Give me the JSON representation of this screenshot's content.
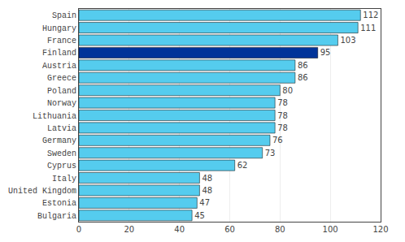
{
  "chart_data": {
    "type": "bar",
    "orientation": "horizontal",
    "categories": [
      "Spain",
      "Hungary",
      "France",
      "Finland",
      "Austria",
      "Greece",
      "Poland",
      "Norway",
      "Lithuania",
      "Latvia",
      "Germany",
      "Sweden",
      "Cyprus",
      "Italy",
      "United Kingdom",
      "Estonia",
      "Bulgaria"
    ],
    "values": [
      112,
      111,
      103,
      95,
      86,
      86,
      80,
      78,
      78,
      78,
      76,
      73,
      62,
      48,
      48,
      47,
      45
    ],
    "colors": [
      "#55ccee",
      "#55ccee",
      "#55ccee",
      "#003399",
      "#55ccee",
      "#55ccee",
      "#55ccee",
      "#55ccee",
      "#55ccee",
      "#55ccee",
      "#55ccee",
      "#55ccee",
      "#55ccee",
      "#55ccee",
      "#55ccee",
      "#55ccee",
      "#55ccee"
    ],
    "xlim": [
      0,
      120
    ],
    "xticks": [
      0,
      20,
      40,
      60,
      80,
      100,
      120
    ],
    "grid": true,
    "data_labels": true
  }
}
